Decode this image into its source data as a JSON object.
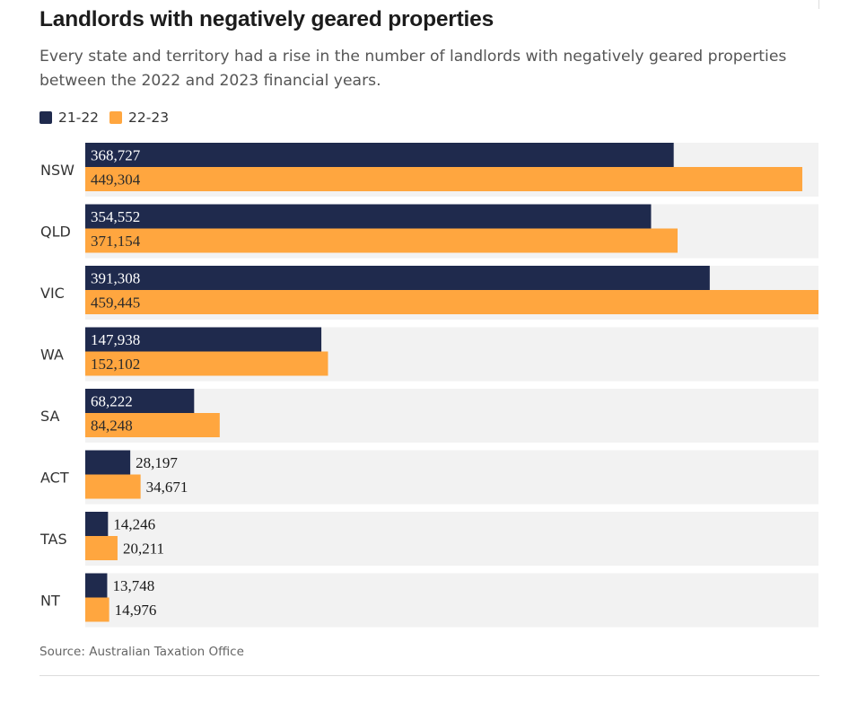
{
  "header": {
    "title": "Landlords with negatively geared properties",
    "subtitle": "Every state and territory had a rise in the number of landlords with negatively geared properties between the 2022 and 2023 financial years."
  },
  "legend": {
    "items": [
      {
        "label": "21-22",
        "color": "#1f2a4d"
      },
      {
        "label": "22-23",
        "color": "#ffa63f"
      }
    ]
  },
  "chart_data": {
    "type": "bar",
    "orientation": "horizontal",
    "title": "Landlords with negatively geared properties",
    "xlabel": "",
    "ylabel": "",
    "xlim": [
      0,
      459445
    ],
    "categories": [
      "NSW",
      "QLD",
      "VIC",
      "WA",
      "SA",
      "ACT",
      "TAS",
      "NT"
    ],
    "series": [
      {
        "name": "21-22",
        "color": "#1f2a4d",
        "values": [
          368727,
          354552,
          391308,
          147938,
          68222,
          28197,
          14246,
          13748
        ],
        "labels": [
          "368,727",
          "354,552",
          "391,308",
          "147,938",
          "68,222",
          "28,197",
          "14,246",
          "13,748"
        ]
      },
      {
        "name": "22-23",
        "color": "#ffa63f",
        "values": [
          449304,
          371154,
          459445,
          152102,
          84248,
          34671,
          20211,
          14976
        ],
        "labels": [
          "449,304",
          "371,154",
          "459,445",
          "152,102",
          "84,248",
          "34,671",
          "20,211",
          "14,976"
        ]
      }
    ]
  },
  "footer": {
    "source": "Source: Australian Taxation Office"
  }
}
